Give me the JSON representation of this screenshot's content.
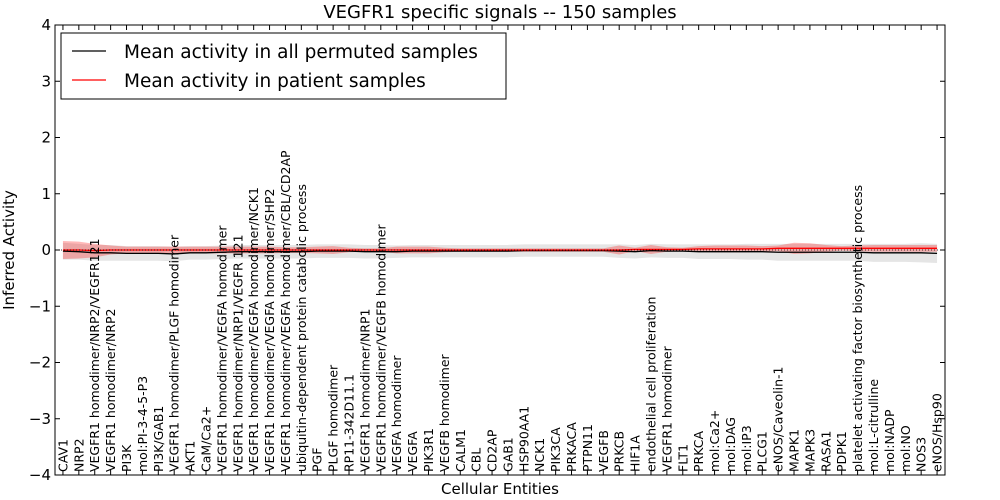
{
  "chart_data": {
    "type": "line",
    "title": "VEGFR1 specific signals -- 150 samples",
    "xlabel": "Cellular Entities",
    "ylabel": "Inferred Activity",
    "ylim": [
      -4,
      4
    ],
    "yticks": [
      "−4",
      "−3",
      "−2",
      "−1",
      "0",
      "1",
      "2",
      "3",
      "4"
    ],
    "yticks_values": [
      -4,
      -3,
      -2,
      -1,
      0,
      1,
      2,
      3,
      4
    ],
    "reference_line": 0,
    "grid": false,
    "legend_position": "top-left",
    "categories": [
      "CAV1",
      "NRP2",
      "VEGFR1 homodimer/NRP2/VEGFR121",
      "VEGFR1 homodimer/NRP2",
      "PI3K",
      "mol:PI-3-4-5-P3",
      "PI3K/GAB1",
      "VEGFR1 homodimer/PLGF homodimer",
      "AKT1",
      "CaM/Ca2+",
      "VEGFR1 homodimer/VEGFA homodimer",
      "VEGFR1 homodimer/NRP1/VEGFR 121",
      "VEGFR1 homodimer/VEGFA homodimer/NCK1",
      "VEGFR1 homodimer/VEGFA homodimer/SHP2",
      "VEGFR1 homodimer/VEGFA homodimer/CBL/CD2AP",
      "ubiquitin-dependent protein catabolic process",
      "PGF",
      "PLGF homodimer",
      "RP11-342D11.1",
      "VEGFR1 homodimer/NRP1",
      "VEGFR1 homodimer/VEGFB homodimer",
      "VEGFA homodimer",
      "VEGFA",
      "PIK3R1",
      "VEGFB homodimer",
      "CALM1",
      "CBL",
      "CD2AP",
      "GAB1",
      "HSP90AA1",
      "NCK1",
      "PIK3CA",
      "PRKACA",
      "PTPN11",
      "VEGFB",
      "PRKCB",
      "HIF1A",
      "endothelial cell proliferation",
      "VEGFR1 homodimer",
      "FLT1",
      "PRKCA",
      "mol:Ca2+",
      "mol:DAG",
      "mol:IP3",
      "PLCG1",
      "eNOS/Caveolin-1",
      "MAPK1",
      "MAPK3",
      "RASA1",
      "PDPK1",
      "platelet activating factor biosynthetic process",
      "mol:L-citrulline",
      "mol:NADP",
      "mol:NO",
      "NOS3",
      "eNOS/Hsp90"
    ],
    "series": [
      {
        "name": "Mean activity in all permuted samples",
        "color": "#000000",
        "values": [
          -0.02,
          -0.03,
          -0.05,
          -0.05,
          -0.06,
          -0.06,
          -0.06,
          -0.07,
          -0.05,
          -0.05,
          -0.04,
          -0.03,
          -0.03,
          -0.03,
          -0.03,
          -0.03,
          -0.02,
          -0.02,
          -0.02,
          -0.03,
          -0.03,
          -0.03,
          -0.02,
          -0.02,
          -0.02,
          -0.02,
          -0.02,
          -0.02,
          -0.02,
          -0.01,
          -0.01,
          -0.01,
          -0.01,
          -0.01,
          -0.01,
          -0.02,
          -0.03,
          -0.01,
          -0.02,
          -0.02,
          -0.03,
          -0.03,
          -0.03,
          -0.03,
          -0.03,
          -0.04,
          -0.04,
          -0.04,
          -0.04,
          -0.04,
          -0.04,
          -0.05,
          -0.05,
          -0.05,
          -0.05,
          -0.06
        ],
        "band": [
          0.15,
          0.14,
          0.14,
          0.14,
          0.13,
          0.13,
          0.13,
          0.13,
          0.12,
          0.12,
          0.12,
          0.12,
          0.12,
          0.12,
          0.12,
          0.12,
          0.12,
          0.12,
          0.12,
          0.12,
          0.12,
          0.11,
          0.11,
          0.11,
          0.11,
          0.11,
          0.11,
          0.11,
          0.11,
          0.11,
          0.11,
          0.11,
          0.11,
          0.11,
          0.11,
          0.12,
          0.12,
          0.12,
          0.12,
          0.12,
          0.13,
          0.13,
          0.13,
          0.14,
          0.14,
          0.15,
          0.15,
          0.15,
          0.15,
          0.15,
          0.15,
          0.16,
          0.16,
          0.16,
          0.17,
          0.17
        ]
      },
      {
        "name": "Mean activity in patient samples",
        "color": "#ff0000",
        "values": [
          0.0,
          0.0,
          -0.01,
          0.0,
          0.0,
          0.0,
          0.0,
          0.0,
          0.0,
          0.0,
          0.0,
          0.0,
          0.0,
          0.0,
          0.0,
          0.0,
          0.0,
          0.0,
          0.0,
          0.0,
          0.0,
          0.0,
          0.0,
          0.0,
          0.0,
          0.0,
          0.0,
          0.0,
          0.0,
          0.0,
          0.0,
          0.0,
          0.0,
          0.0,
          0.0,
          0.0,
          0.01,
          0.01,
          0.01,
          0.01,
          0.02,
          0.02,
          0.02,
          0.02,
          0.02,
          0.03,
          0.03,
          0.03,
          0.03,
          0.03,
          0.03,
          0.03,
          0.03,
          0.03,
          0.03,
          0.03
        ],
        "band": [
          0.16,
          0.15,
          0.12,
          0.08,
          0.06,
          0.06,
          0.06,
          0.06,
          0.06,
          0.06,
          0.06,
          0.06,
          0.06,
          0.06,
          0.05,
          0.05,
          0.06,
          0.07,
          0.04,
          0.03,
          0.03,
          0.06,
          0.06,
          0.06,
          0.04,
          0.03,
          0.03,
          0.03,
          0.03,
          0.03,
          0.03,
          0.03,
          0.03,
          0.03,
          0.03,
          0.08,
          0.03,
          0.08,
          0.04,
          0.03,
          0.05,
          0.06,
          0.06,
          0.06,
          0.05,
          0.05,
          0.1,
          0.09,
          0.06,
          0.04,
          0.05,
          0.06,
          0.06,
          0.06,
          0.06,
          0.06
        ]
      }
    ]
  }
}
